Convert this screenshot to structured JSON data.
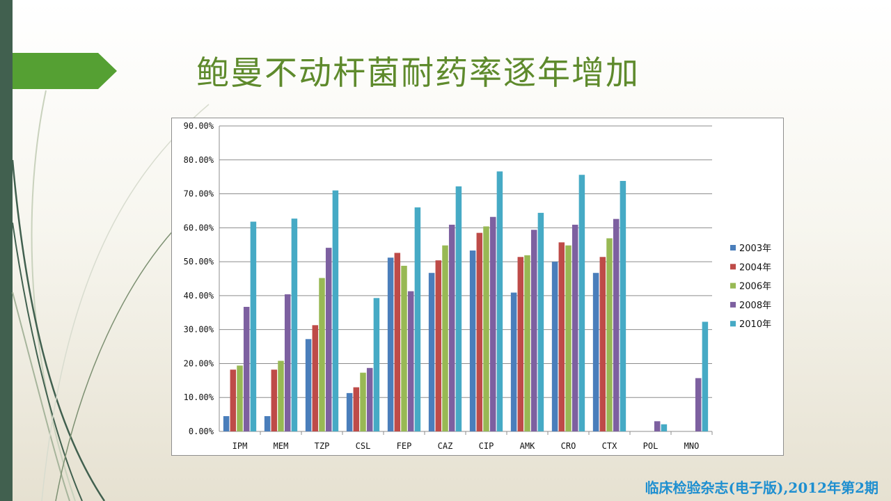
{
  "slide": {
    "title": "鲍曼不动杆菌耐药率逐年增加",
    "source": "临床检验杂志(电子版),2012年第2期"
  },
  "colors": {
    "title": "#5e8a2c",
    "arrow": "#55a033",
    "strip": "#41604f",
    "source": "#1e8fd0"
  },
  "chart_data": {
    "type": "bar",
    "title": "",
    "xlabel": "",
    "ylabel": "",
    "ylim": [
      0,
      90
    ],
    "y_unit": "percent",
    "y_ticks": [
      "0.00%",
      "10.00%",
      "20.00%",
      "30.00%",
      "40.00%",
      "50.00%",
      "60.00%",
      "70.00%",
      "80.00%",
      "90.00%"
    ],
    "grid": true,
    "legend_position": "right",
    "categories": [
      "IPM",
      "MEM",
      "TZP",
      "CSL",
      "FEP",
      "CAZ",
      "CIP",
      "AMK",
      "CRO",
      "CTX",
      "POL",
      "MNO"
    ],
    "series": [
      {
        "name": "2003年",
        "color": "#4a7ebb",
        "values": [
          4.5,
          4.5,
          27.2,
          11.3,
          51.2,
          46.7,
          53.3,
          40.9,
          50.0,
          46.7,
          0,
          0
        ]
      },
      {
        "name": "2004年",
        "color": "#be4b48",
        "values": [
          18.2,
          18.2,
          31.3,
          13.0,
          52.6,
          50.4,
          58.5,
          51.4,
          55.7,
          51.4,
          0,
          0
        ]
      },
      {
        "name": "2006年",
        "color": "#98b954",
        "values": [
          19.4,
          20.8,
          45.2,
          17.3,
          48.8,
          54.8,
          60.4,
          51.9,
          54.8,
          56.9,
          0,
          0
        ]
      },
      {
        "name": "2008年",
        "color": "#7d60a0",
        "values": [
          36.7,
          40.4,
          54.1,
          18.7,
          41.3,
          60.9,
          63.2,
          59.4,
          60.9,
          62.6,
          3.0,
          15.7
        ]
      },
      {
        "name": "2010年",
        "color": "#46aac5",
        "values": [
          61.8,
          62.7,
          71.0,
          39.3,
          66.0,
          72.2,
          76.6,
          64.4,
          75.6,
          73.8,
          2.1,
          32.3
        ]
      }
    ]
  }
}
